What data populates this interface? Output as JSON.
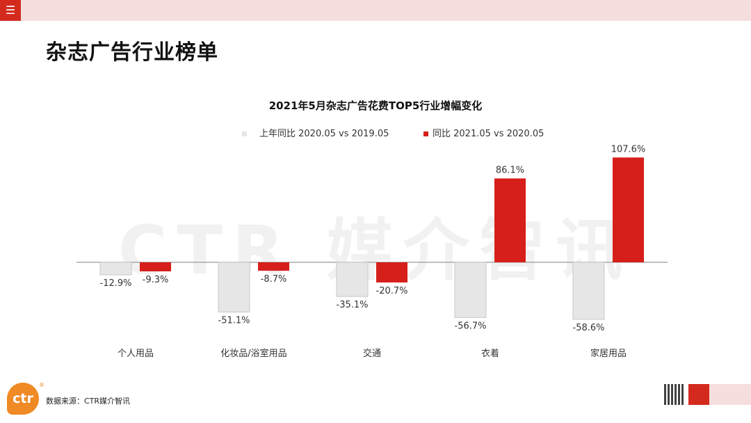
{
  "header": {
    "menu_icon": "☰",
    "page_title": "杂志广告行业榜单"
  },
  "watermark": "CTR 媒介智讯",
  "chart_data": {
    "type": "bar",
    "title": "2021年5月杂志广告花费TOP5行业增幅变化",
    "categories": [
      "个人用品",
      "化妆品/浴室用品",
      "交通",
      "衣着",
      "家居用品"
    ],
    "series": [
      {
        "name": "上年同比 2020.05 vs 2019.05",
        "color": "#e6e6e6",
        "values": [
          -12.9,
          -51.1,
          -35.1,
          -56.7,
          -58.6
        ],
        "labels": [
          "-12.9%",
          "-51.1%",
          "-35.1%",
          "-56.7%",
          "-58.6%"
        ]
      },
      {
        "name": "同比 2021.05 vs 2020.05",
        "color": "#d61f1a",
        "values": [
          -9.3,
          -8.7,
          -20.7,
          86.1,
          107.6
        ],
        "labels": [
          "-9.3%",
          "-8.7%",
          "-20.7%",
          "86.1%",
          "107.6%"
        ]
      }
    ],
    "ylim": [
      -60,
      110
    ],
    "unit": "%",
    "grid": false,
    "legend": "top"
  },
  "footer": {
    "logo_text": "ctr",
    "logo_mark": "®",
    "source": "数据来源：CTR媒介智讯"
  }
}
